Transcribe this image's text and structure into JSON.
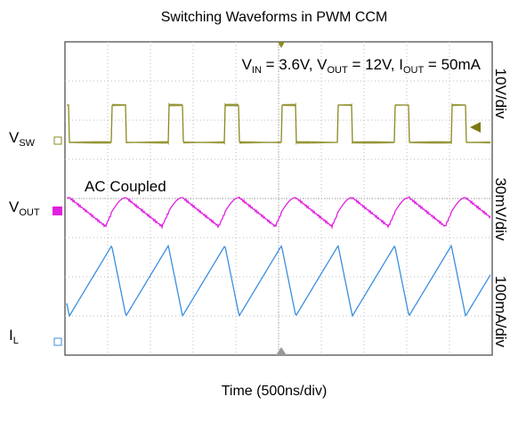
{
  "title": "Switching Waveforms in PWM CCM",
  "conditions": [
    {
      "text": "V"
    },
    {
      "text": "IN",
      "sub": true
    },
    {
      "text": " = 3.6V, V"
    },
    {
      "text": "OUT",
      "sub": true
    },
    {
      "text": " = 12V, I"
    },
    {
      "text": "OUT",
      "sub": true
    },
    {
      "text": " = 50mA"
    }
  ],
  "annotation": "AC  Coupled",
  "channels": [
    {
      "name": [
        {
          "text": "V"
        },
        {
          "text": "SW",
          "sub": true
        }
      ],
      "scale": "10V/div"
    },
    {
      "name": [
        {
          "text": "V"
        },
        {
          "text": "OUT",
          "sub": true
        }
      ],
      "scale": "30mV/div"
    },
    {
      "name": [
        {
          "text": "I"
        },
        {
          "text": "L",
          "sub": true
        }
      ],
      "scale": "100mA/div"
    }
  ],
  "x_axis_label": "Time (500ns/div)"
}
